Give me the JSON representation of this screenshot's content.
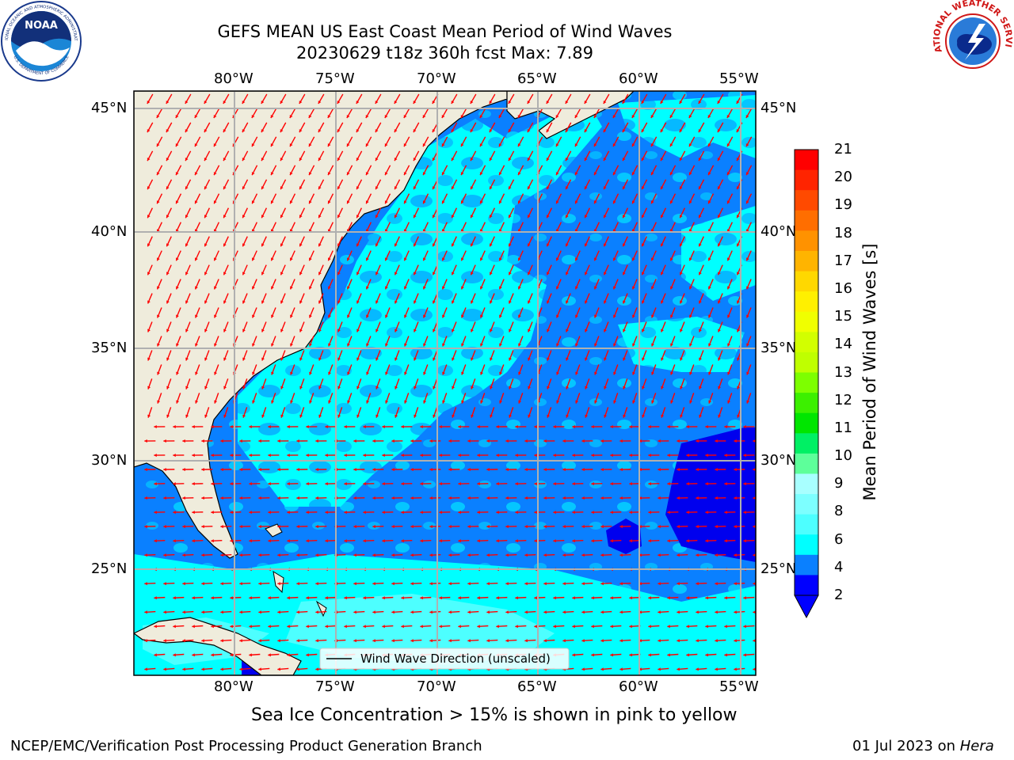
{
  "header": {
    "title_line1": "GEFS MEAN US East Coast Mean Period of Wind Waves",
    "title_line2": "20230629 t18z 360h fcst   Max: 7.89",
    "noaa_logo_text": "NOAA",
    "noaa_ring_text": "NATIONAL OCEANIC AND ATMOSPHERIC ADMINISTRATION",
    "noaa_ring_text_bottom": "U.S. DEPARTMENT OF COMMERCE",
    "nws_ring_text": "NATIONAL WEATHER SERVICE"
  },
  "map": {
    "lon_labels": [
      "80°W",
      "75°W",
      "70°W",
      "65°W",
      "60°W",
      "55°W"
    ],
    "lat_labels": [
      "45°N",
      "40°N",
      "35°N",
      "30°N",
      "25°N"
    ],
    "legend_text": "Wind Wave Direction (unscaled)",
    "colors": {
      "land": "#efecdc",
      "field_dark": "#0a80ff",
      "field_cyan": "#00ffff",
      "field_light_cyan": "#4dffff",
      "field_deep_blue": "#0000ee",
      "arrow": "#ff0000",
      "grid": "#b0b0b0"
    }
  },
  "colorbar": {
    "label": "Mean Period of Wind Waves [s]",
    "ticks": [
      "21",
      "20",
      "19",
      "18",
      "17",
      "16",
      "15",
      "14",
      "13",
      "12",
      "11",
      "10",
      "9",
      "8",
      "6",
      "4",
      "2"
    ],
    "colors": [
      "#ff0000",
      "#ff2400",
      "#ff4a00",
      "#ff6e00",
      "#ff9200",
      "#ffb400",
      "#ffd800",
      "#fff000",
      "#f0ff00",
      "#d2ff00",
      "#bfff00",
      "#7dff00",
      "#3cf000",
      "#00e600",
      "#00f064",
      "#5dff9a",
      "#a8ffff",
      "#7dffff",
      "#4dffff",
      "#00ffff",
      "#0a80ff",
      "#0000ff"
    ]
  },
  "footer": {
    "sea_ice_note": "Sea Ice Concentration > 15% is shown in pink to yellow",
    "left": "NCEP/EMC/Verification Post Processing Product Generation Branch",
    "right_date": "01 Jul 2023 on ",
    "right_host": "Hera"
  }
}
